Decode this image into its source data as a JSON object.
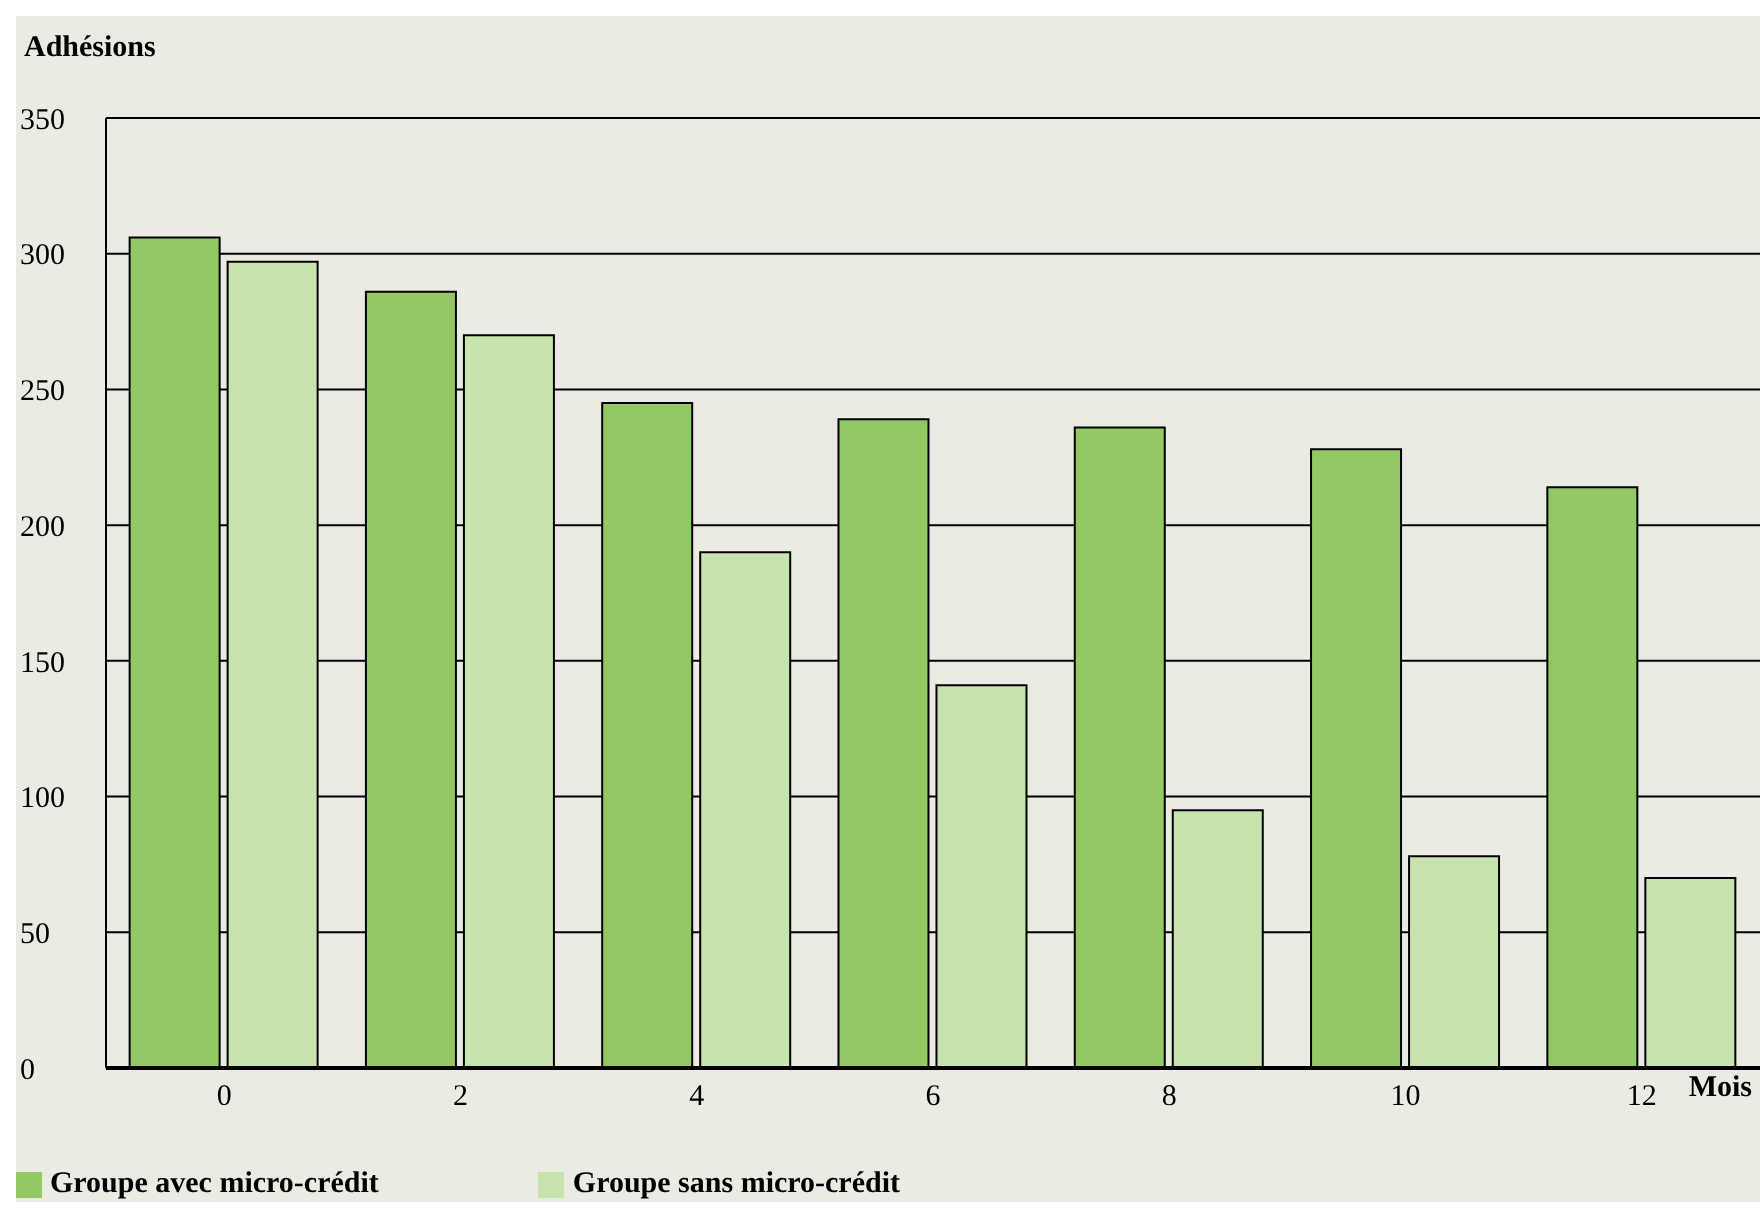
{
  "chart_data": {
    "type": "bar",
    "ylabel": "Adhésions",
    "xlabel": "Mois",
    "categories": [
      "0",
      "2",
      "4",
      "6",
      "8",
      "10",
      "12"
    ],
    "series": [
      {
        "name": "Groupe avec micro-crédit",
        "color": "#92c966",
        "values": [
          306,
          286,
          245,
          239,
          236,
          228,
          214
        ]
      },
      {
        "name": "Groupe sans micro-crédit",
        "color": "#c8e3ad",
        "values": [
          297,
          270,
          190,
          141,
          95,
          78,
          70
        ]
      }
    ],
    "ylim": [
      0,
      350
    ],
    "yticks": [
      0,
      50,
      100,
      150,
      200,
      250,
      300,
      350
    ],
    "grid": "y",
    "legend": "bottom left"
  }
}
